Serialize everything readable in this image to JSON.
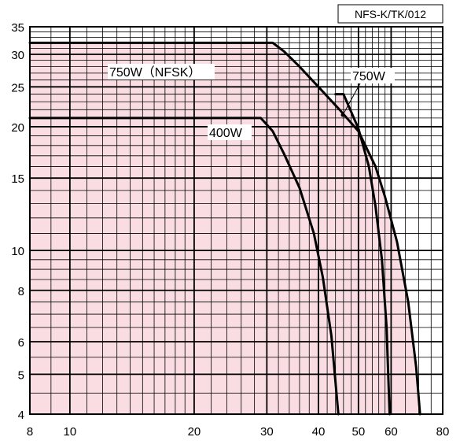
{
  "model_code": "NFS-K/TK/012",
  "colors": {
    "background": "#ffffff",
    "fill": "#f9dde3",
    "grid": "#000000",
    "curve": "#000000"
  },
  "chart_data": {
    "type": "line",
    "title": "",
    "xlabel": "",
    "ylabel": "",
    "x_scale": "log",
    "y_scale": "log",
    "xlim": [
      8,
      80
    ],
    "ylim": [
      4,
      35
    ],
    "grid": true,
    "x_ticks": [
      8,
      10,
      20,
      30,
      40,
      50,
      60,
      80
    ],
    "x_tick_labels": [
      "8",
      "10",
      "20",
      "30",
      "40",
      "50",
      "60",
      "80"
    ],
    "y_ticks": [
      4,
      5,
      6,
      8,
      10,
      15,
      20,
      25,
      30,
      35
    ],
    "y_tick_labels": [
      "4",
      "5",
      "6",
      "8",
      "10",
      "15",
      "20",
      "25",
      "30",
      "35"
    ],
    "series": [
      {
        "name": "750W（NFSK）",
        "x": [
          8,
          31,
          33,
          36,
          40,
          45,
          50,
          55,
          58,
          62,
          66,
          69,
          70.5
        ],
        "y": [
          32,
          32,
          30.5,
          28,
          25,
          22,
          19.5,
          16,
          13.5,
          10.5,
          7.5,
          5.2,
          4
        ]
      },
      {
        "name": "750W",
        "x": [
          44,
          46,
          50,
          53,
          55,
          57,
          58.5,
          59.5
        ],
        "y": [
          24,
          24,
          19.8,
          16,
          12.8,
          9.5,
          6.5,
          4
        ]
      },
      {
        "name": "400W",
        "x": [
          8,
          29,
          31,
          33,
          36,
          39,
          41,
          43,
          44.7
        ],
        "y": [
          21,
          21,
          19.5,
          17.2,
          14.2,
          11,
          8.6,
          6.2,
          4
        ]
      }
    ]
  }
}
